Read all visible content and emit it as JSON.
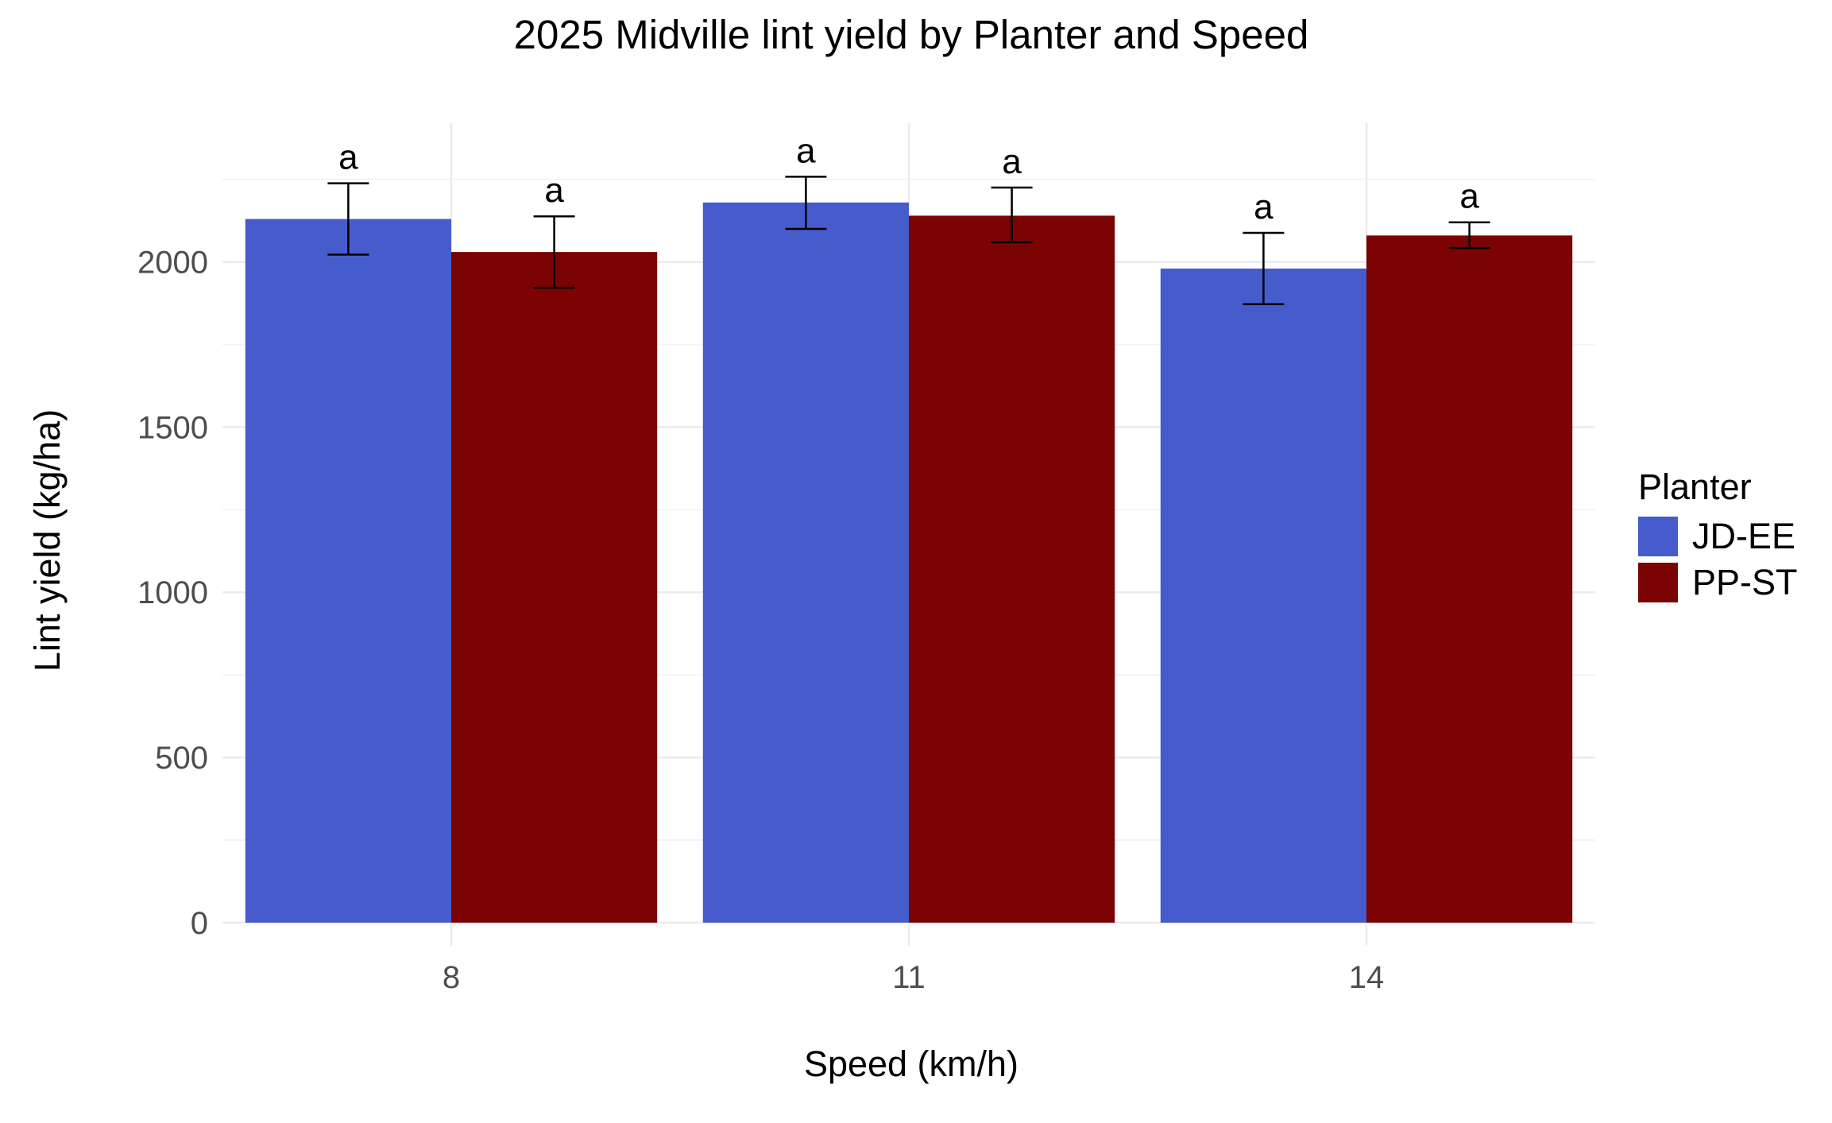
{
  "chart_data": {
    "type": "bar",
    "title": "2025 Midville lint yield by Planter and Speed",
    "xlabel": "Speed (km/h)",
    "ylabel": "Lint yield (kg/ha)",
    "categories": [
      "8",
      "11",
      "14"
    ],
    "ylim": [
      -70,
      2420
    ],
    "yticks": [
      0,
      500,
      1000,
      1500,
      2000
    ],
    "grid": true,
    "legend": {
      "title": "Planter",
      "position": "right"
    },
    "series": [
      {
        "name": "JD-EE",
        "color": "#465ccd",
        "values": [
          2130,
          2180,
          1980
        ],
        "error": [
          [
            2022,
            2238
          ],
          [
            2100,
            2258
          ],
          [
            1872,
            2088
          ]
        ],
        "letters": [
          "a",
          "a",
          "a"
        ]
      },
      {
        "name": "PP-ST",
        "color": "#7b0303",
        "values": [
          2030,
          2140,
          2080
        ],
        "error": [
          [
            1922,
            2138
          ],
          [
            2060,
            2225
          ],
          [
            2042,
            2120
          ]
        ],
        "letters": [
          "a",
          "a",
          "a"
        ]
      }
    ]
  }
}
